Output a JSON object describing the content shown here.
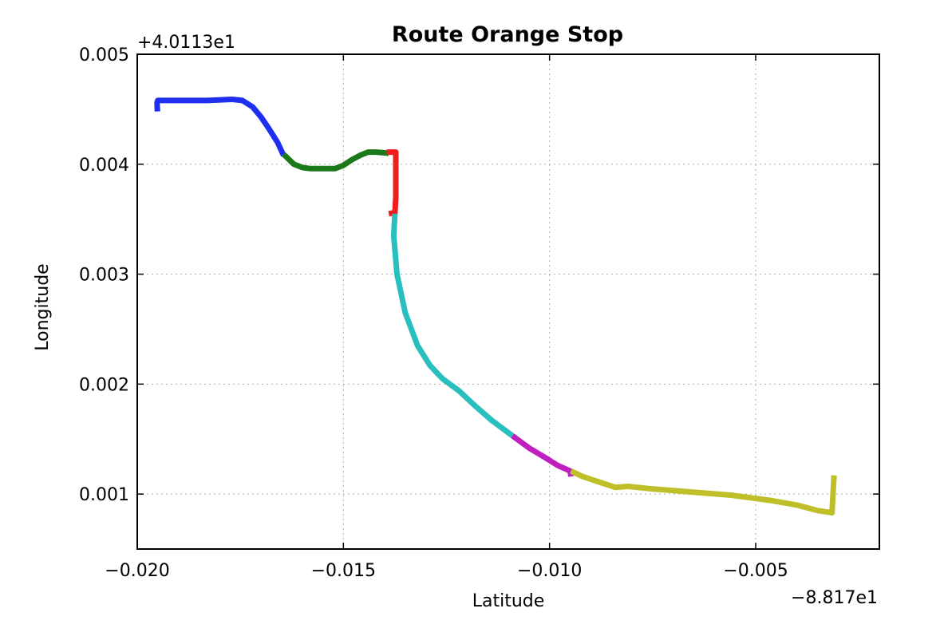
{
  "chart_data": {
    "type": "line",
    "title": "Route Orange Stop",
    "xlabel": "Latitude",
    "ylabel": "Longitude",
    "x_offset_label": "−8.817e1",
    "y_offset_label": "+4.0113e1",
    "xlim": [
      -0.02,
      -0.002
    ],
    "ylim": [
      0.0005,
      0.005
    ],
    "xticks": [
      -0.02,
      -0.015,
      -0.01,
      -0.005
    ],
    "xtick_labels": [
      "−0.020",
      "−0.015",
      "−0.010",
      "−0.005"
    ],
    "yticks": [
      0.001,
      0.002,
      0.003,
      0.004,
      0.005
    ],
    "ytick_labels": [
      "0.001",
      "0.002",
      "0.003",
      "0.004",
      "0.005"
    ],
    "grid": true,
    "series": [
      {
        "color": "#1f2ff0",
        "x": [
          -0.01951,
          -0.01952,
          -0.0195,
          -0.019,
          -0.0183,
          -0.0177,
          -0.01745,
          -0.0172,
          -0.017,
          -0.0168,
          -0.0166,
          -0.01645
        ],
        "y": [
          0.00448,
          0.00456,
          0.00458,
          0.00458,
          0.00458,
          0.00459,
          0.00458,
          0.00452,
          0.00443,
          0.00432,
          0.0042,
          0.00408
        ]
      },
      {
        "color": "#1a7a1a",
        "x": [
          -0.01645,
          -0.0162,
          -0.016,
          -0.0158,
          -0.0155,
          -0.0152,
          -0.015,
          -0.0148,
          -0.0146,
          -0.0144,
          -0.0142,
          -0.0139
        ],
        "y": [
          0.00409,
          0.004,
          0.00397,
          0.00396,
          0.00396,
          0.00396,
          0.00399,
          0.00404,
          0.00408,
          0.00411,
          0.00411,
          0.0041
        ]
      },
      {
        "color": "#f01d1d",
        "x": [
          -0.01395,
          -0.01373,
          -0.01373,
          -0.01375,
          -0.0139
        ],
        "y": [
          0.00411,
          0.00411,
          0.0037,
          0.00356,
          0.00355
        ]
      },
      {
        "color": "#2abfbf",
        "x": [
          -0.01375,
          -0.01378,
          -0.0137,
          -0.0135,
          -0.0132,
          -0.0129,
          -0.0126,
          -0.0122,
          -0.0118,
          -0.0114,
          -0.0109
        ],
        "y": [
          0.00355,
          0.00335,
          0.003,
          0.00265,
          0.00235,
          0.00217,
          0.00205,
          0.00194,
          0.0018,
          0.00167,
          0.00153
        ]
      },
      {
        "color": "#bf1fbf",
        "x": [
          -0.0109,
          -0.0105,
          -0.0101,
          -0.0098,
          -0.0095,
          -0.00948
        ],
        "y": [
          0.00153,
          0.00142,
          0.00133,
          0.00126,
          0.00121,
          0.00116
        ]
      },
      {
        "color": "#bfbf2a",
        "x": [
          -0.00948,
          -0.0092,
          -0.0088,
          -0.0084,
          -0.0081,
          -0.0076,
          -0.0066,
          -0.0056,
          -0.0046,
          -0.004,
          -0.0035,
          -0.00315,
          -0.0031
        ],
        "y": [
          0.00121,
          0.00116,
          0.00111,
          0.00106,
          0.00107,
          0.00105,
          0.00102,
          0.00099,
          0.00094,
          0.0009,
          0.00085,
          0.00083,
          0.00117
        ]
      }
    ]
  }
}
